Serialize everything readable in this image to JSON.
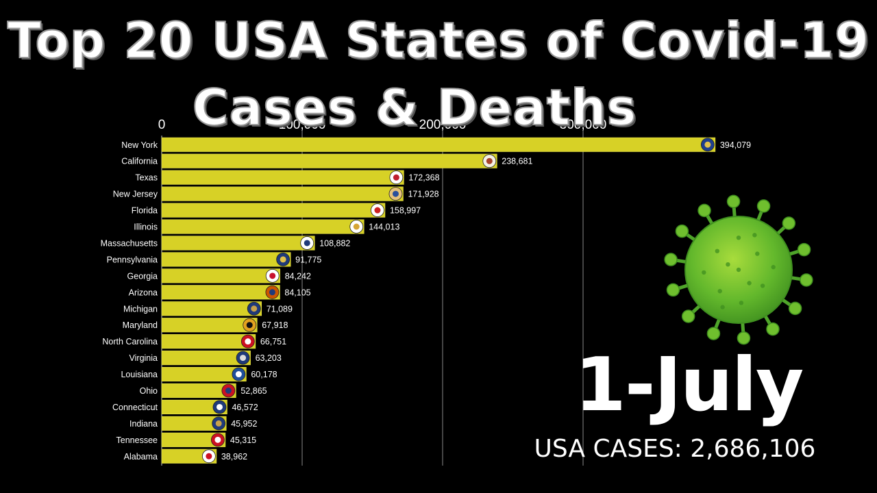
{
  "title_line1": "Top 20 USA States of Covid-19",
  "title_line2": "Cases & Deaths",
  "date_label": "1-July",
  "total_label": "USA CASES: 2,686,106",
  "colors": {
    "background": "#000000",
    "bar": "#d7d126",
    "bar_edge": "#e8e34a",
    "grid": "#8a8a8a",
    "text": "#ffffff",
    "virus_dark": "#3f8f1f",
    "virus_light": "#a8dc3c"
  },
  "icons": [
    "coronavirus-icon",
    "state-flag-icon"
  ],
  "chart_data": {
    "type": "bar",
    "orientation": "horizontal",
    "title": "Top 20 USA States of Covid-19 Cases & Deaths",
    "xlim": [
      0,
      400000
    ],
    "xticks": [
      0,
      100000,
      200000,
      300000
    ],
    "xtick_labels": [
      "0",
      "100,000",
      "200,000",
      "300,000"
    ],
    "grid": true,
    "categories": [
      "New York",
      "California",
      "Texas",
      "New Jersey",
      "Florida",
      "Illinois",
      "Massachusetts",
      "Pennsylvania",
      "Georgia",
      "Arizona",
      "Michigan",
      "Maryland",
      "North Carolina",
      "Virginia",
      "Louisiana",
      "Ohio",
      "Connecticut",
      "Indiana",
      "Tennessee",
      "Alabama"
    ],
    "values": [
      394079,
      238681,
      172368,
      171928,
      158997,
      144013,
      108882,
      91775,
      84242,
      84105,
      71089,
      67918,
      66751,
      63203,
      60178,
      52865,
      46572,
      45952,
      45315,
      38962
    ],
    "value_labels": [
      "394,079",
      "238,681",
      "172,368",
      "171,928",
      "158,997",
      "144,013",
      "108,882",
      "91,775",
      "84,242",
      "84,105",
      "71,089",
      "67,918",
      "66,751",
      "63,203",
      "60,178",
      "52,865",
      "46,572",
      "45,952",
      "45,315",
      "38,962"
    ]
  }
}
